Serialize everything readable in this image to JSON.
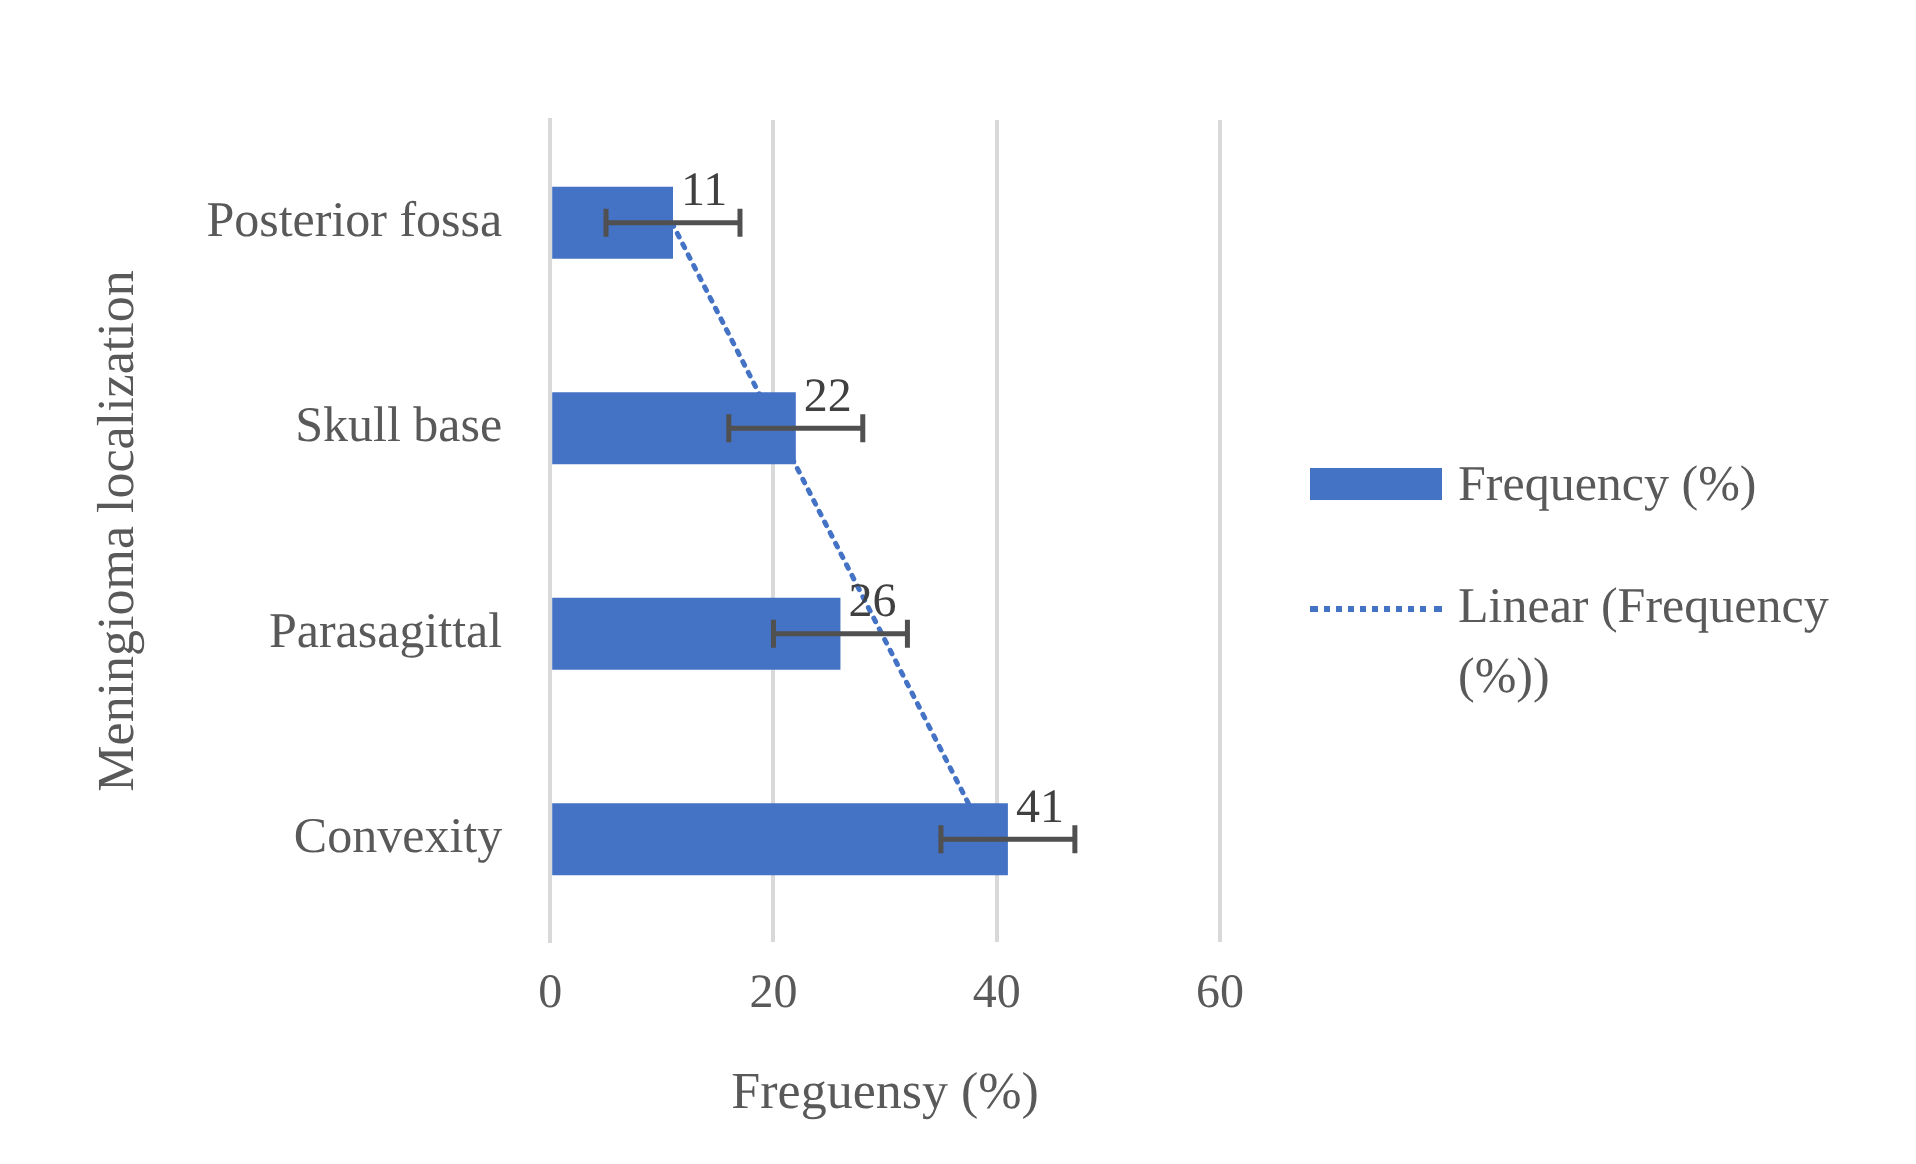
{
  "chart_data": {
    "type": "bar",
    "orientation": "horizontal",
    "xlabel": "Freguensy (%)",
    "ylabel": "Meningioma localization",
    "categories": [
      "Posterior fossa",
      "Skull base",
      "Parasagittal",
      "Convexity"
    ],
    "series": [
      {
        "name": "Frequency (%)",
        "color": "#4472c4",
        "values": [
          11,
          22,
          26,
          41
        ],
        "errors": [
          6,
          6,
          6,
          6
        ],
        "value_labels": [
          "11",
          "22",
          "26",
          "41"
        ]
      },
      {
        "name": "Linear (Frequency (%))",
        "type": "line",
        "color": "#4472c4",
        "line_style": "dotted",
        "marker": "none",
        "values": [
          10.9,
          20.3,
          29.7,
          39.1
        ]
      }
    ],
    "xlim": [
      0,
      60
    ],
    "xticks": [
      0,
      20,
      40,
      60
    ],
    "grid": "x",
    "legend": "right"
  }
}
